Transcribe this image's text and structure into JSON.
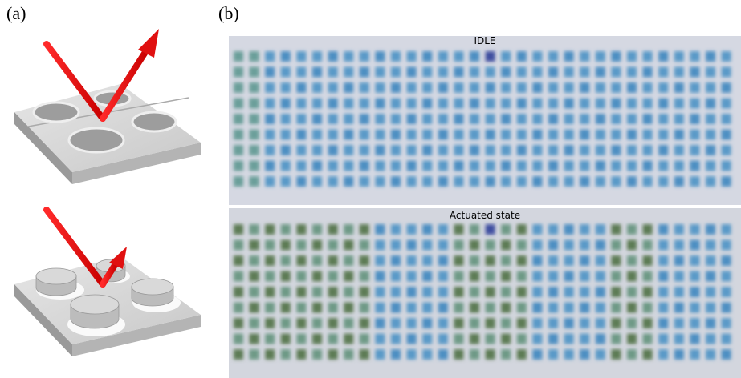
{
  "panels": [
    {
      "label": "(a)"
    },
    {
      "label": "(b)",
      "images": [
        {
          "label": "IDLE"
        },
        {
          "label": "Actuated state"
        }
      ]
    }
  ]
}
